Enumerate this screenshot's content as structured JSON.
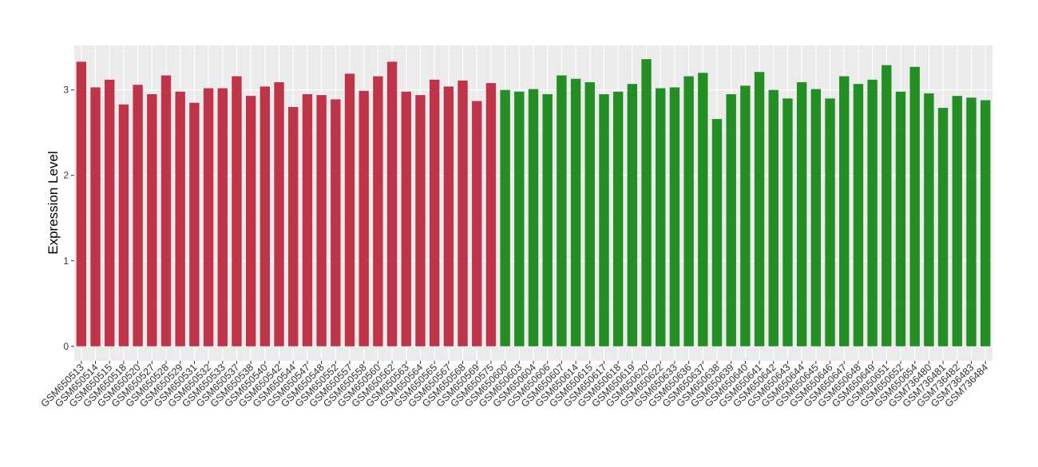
{
  "chart_data": {
    "type": "bar",
    "y_label": "Expression Level",
    "ylim": [
      -0.17,
      3.52
    ],
    "yticks": [
      0,
      1,
      2,
      3
    ],
    "grid": true,
    "series": [
      {
        "color": "#c0344a",
        "categories": [
          "GSM650513",
          "GSM650514",
          "GSM650515",
          "GSM650518",
          "GSM650520",
          "GSM650527",
          "GSM650528",
          "GSM650529",
          "GSM650531",
          "GSM650532",
          "GSM650533",
          "GSM650537",
          "GSM650538",
          "GSM650540",
          "GSM650542",
          "GSM650544",
          "GSM650547",
          "GSM650548",
          "GSM650552",
          "GSM650557",
          "GSM650558",
          "GSM650560",
          "GSM650562",
          "GSM650563",
          "GSM650564",
          "GSM650565",
          "GSM650567",
          "GSM650568",
          "GSM650569",
          "GSM650575"
        ],
        "values": [
          3.33,
          3.03,
          3.12,
          2.83,
          3.06,
          2.95,
          3.17,
          2.98,
          2.85,
          3.02,
          3.02,
          3.16,
          2.93,
          3.04,
          3.09,
          2.8,
          2.95,
          2.94,
          2.89,
          3.19,
          2.99,
          3.16,
          3.33,
          2.98,
          2.94,
          3.12,
          3.04,
          3.11,
          2.87,
          3.08
        ]
      },
      {
        "color": "#238e23",
        "categories": [
          "GSM650600",
          "GSM650603",
          "GSM650604",
          "GSM650606",
          "GSM650607",
          "GSM650614",
          "GSM650615",
          "GSM650617",
          "GSM650618",
          "GSM650619",
          "GSM650620",
          "GSM650622",
          "GSM650633",
          "GSM650636",
          "GSM650637",
          "GSM650638",
          "GSM650639",
          "GSM650640",
          "GSM650641",
          "GSM650642",
          "GSM650643",
          "GSM650644",
          "GSM650645",
          "GSM650646",
          "GSM650647",
          "GSM650648",
          "GSM650649",
          "GSM650651",
          "GSM650652",
          "GSM650654",
          "GSM736480",
          "GSM736481",
          "GSM736482",
          "GSM736483",
          "GSM736484"
        ],
        "values": [
          3.0,
          2.98,
          3.01,
          2.95,
          3.17,
          3.13,
          3.09,
          2.95,
          2.98,
          3.07,
          3.36,
          3.02,
          3.03,
          3.16,
          3.2,
          2.66,
          2.95,
          3.05,
          3.21,
          3.0,
          2.9,
          3.09,
          3.01,
          2.9,
          3.16,
          3.07,
          3.12,
          3.29,
          2.98,
          3.27,
          2.96,
          2.79,
          2.93,
          2.91,
          2.88
        ]
      }
    ]
  }
}
